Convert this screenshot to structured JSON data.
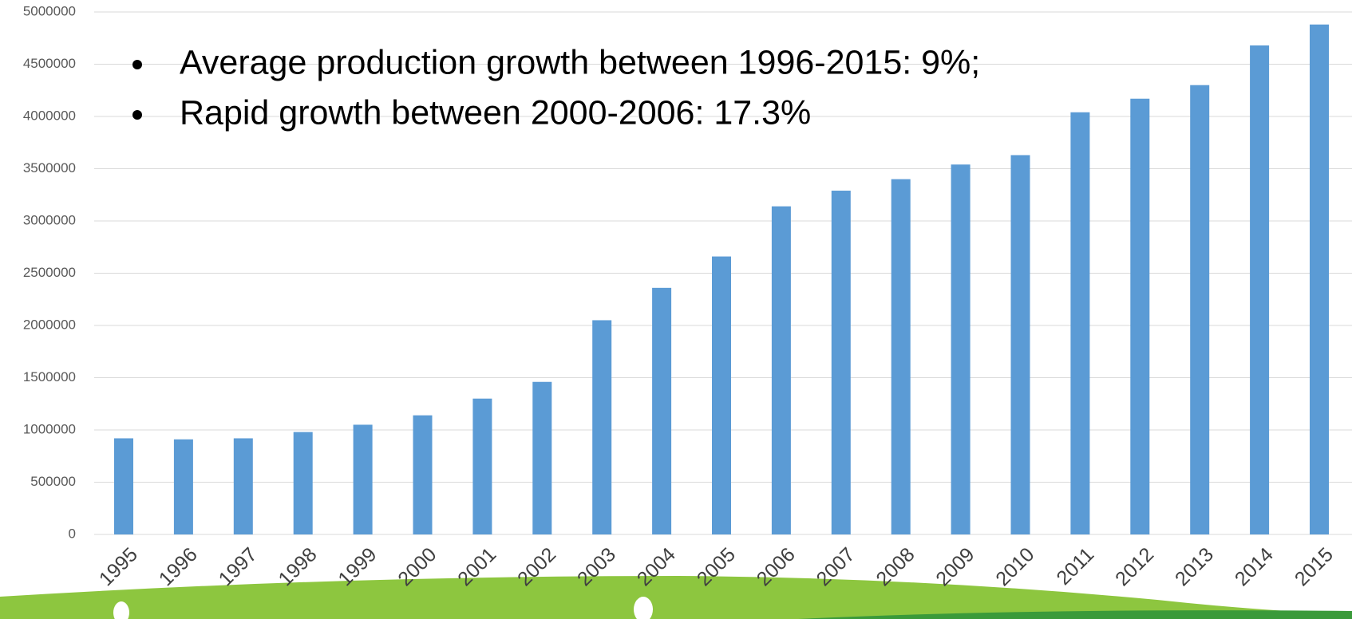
{
  "chart_data": {
    "type": "bar",
    "categories": [
      "1995",
      "1996",
      "1997",
      "1998",
      "1999",
      "2000",
      "2001",
      "2002",
      "2003",
      "2004",
      "2005",
      "2006",
      "2007",
      "2008",
      "2009",
      "2010",
      "2011",
      "2012",
      "2013",
      "2014",
      "2015"
    ],
    "values": [
      920000,
      910000,
      920000,
      980000,
      1050000,
      1140000,
      1300000,
      1460000,
      2050000,
      2360000,
      2660000,
      3140000,
      3290000,
      3400000,
      3540000,
      3630000,
      4040000,
      4170000,
      4300000,
      4680000,
      4880000
    ],
    "color": "#5b9bd5",
    "ylim": [
      0,
      5000000
    ],
    "yticks": [
      0,
      500000,
      1000000,
      1500000,
      2000000,
      2500000,
      3000000,
      3500000,
      4000000,
      4500000,
      5000000
    ],
    "grid": true,
    "annotations": [
      "Average production growth between 1996-2015: 9%;",
      "Rapid growth between 2000-2006: 17.3%"
    ]
  }
}
